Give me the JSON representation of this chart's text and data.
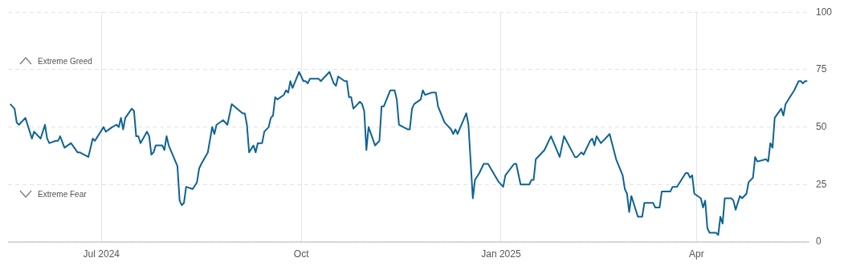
{
  "chart_data": {
    "type": "line",
    "x": [
      "2024-05-20",
      "2024-05-22",
      "2024-05-23",
      "2024-05-24",
      "2024-05-27",
      "2024-05-30",
      "2024-05-31",
      "2024-06-03",
      "2024-06-05",
      "2024-06-06",
      "2024-06-07",
      "2024-06-10",
      "2024-06-11",
      "2024-06-12",
      "2024-06-14",
      "2024-06-17",
      "2024-06-20",
      "2024-06-21",
      "2024-06-25",
      "2024-06-27",
      "2024-06-28",
      "2024-07-02",
      "2024-07-03",
      "2024-07-06",
      "2024-07-08",
      "2024-07-09",
      "2024-07-10",
      "2024-07-11",
      "2024-07-12",
      "2024-07-15",
      "2024-07-16",
      "2024-07-17",
      "2024-07-18",
      "2024-07-19",
      "2024-07-22",
      "2024-07-23",
      "2024-07-24",
      "2024-07-25",
      "2024-07-26",
      "2024-07-29",
      "2024-07-30",
      "2024-07-31",
      "2024-08-01",
      "2024-08-05",
      "2024-08-06",
      "2024-08-07",
      "2024-08-08",
      "2024-08-09",
      "2024-08-12",
      "2024-08-14",
      "2024-08-15",
      "2024-08-16",
      "2024-08-19",
      "2024-08-21",
      "2024-08-22",
      "2024-08-23",
      "2024-08-26",
      "2024-08-28",
      "2024-08-30",
      "2024-09-04",
      "2024-09-05",
      "2024-09-06",
      "2024-09-07",
      "2024-09-09",
      "2024-09-10",
      "2024-09-11",
      "2024-09-13",
      "2024-09-14",
      "2024-09-16",
      "2024-09-17",
      "2024-09-18",
      "2024-09-19",
      "2024-09-20",
      "2024-09-23",
      "2024-09-24",
      "2024-09-25",
      "2024-09-26",
      "2024-09-27",
      "2024-09-30",
      "2024-10-02",
      "2024-10-03",
      "2024-10-04",
      "2024-10-05",
      "2024-10-07",
      "2024-10-09",
      "2024-10-10",
      "2024-10-12",
      "2024-10-14",
      "2024-10-16",
      "2024-10-17",
      "2024-10-18",
      "2024-10-21",
      "2024-10-22",
      "2024-10-23",
      "2024-10-24",
      "2024-10-25",
      "2024-10-28",
      "2024-10-29",
      "2024-10-30",
      "2024-10-31",
      "2024-11-01",
      "2024-11-04",
      "2024-11-06",
      "2024-11-07",
      "2024-11-08",
      "2024-11-11",
      "2024-11-13",
      "2024-11-14",
      "2024-11-15",
      "2024-11-17",
      "2024-11-19",
      "2024-11-20",
      "2024-11-21",
      "2024-11-22",
      "2024-11-25",
      "2024-11-26",
      "2024-11-27",
      "2024-11-30",
      "2024-12-02",
      "2024-12-03",
      "2024-12-06",
      "2024-12-09",
      "2024-12-10",
      "2024-12-11",
      "2024-12-12",
      "2024-12-16",
      "2024-12-17",
      "2024-12-19",
      "2024-12-20",
      "2024-12-22",
      "2024-12-24",
      "2024-12-26",
      "2024-12-31",
      "2025-01-02",
      "2025-01-03",
      "2025-01-07",
      "2025-01-08",
      "2025-01-10",
      "2025-01-14",
      "2025-01-15",
      "2025-01-16",
      "2025-01-17",
      "2025-01-21",
      "2025-01-24",
      "2025-01-28",
      "2025-01-30",
      "2025-02-04",
      "2025-02-05",
      "2025-02-07",
      "2025-02-08",
      "2025-02-11",
      "2025-02-12",
      "2025-02-13",
      "2025-02-14",
      "2025-02-16",
      "2025-02-20",
      "2025-02-23",
      "2025-02-26",
      "2025-02-27",
      "2025-02-28",
      "2025-03-01",
      "2025-03-02",
      "2025-03-05",
      "2025-03-06",
      "2025-03-07",
      "2025-03-08",
      "2025-03-09",
      "2025-03-12",
      "2025-03-13",
      "2025-03-14",
      "2025-03-15",
      "2025-03-16",
      "2025-03-20",
      "2025-03-21",
      "2025-03-23",
      "2025-03-27",
      "2025-03-28",
      "2025-03-29",
      "2025-03-30",
      "2025-03-31",
      "2025-04-03",
      "2025-04-04",
      "2025-04-05",
      "2025-04-06",
      "2025-04-07",
      "2025-04-10",
      "2025-04-11",
      "2025-04-12",
      "2025-04-13",
      "2025-04-14",
      "2025-04-17",
      "2025-04-18",
      "2025-04-19",
      "2025-04-21",
      "2025-04-22",
      "2025-04-24",
      "2025-04-25",
      "2025-04-27",
      "2025-04-28",
      "2025-04-29",
      "2025-05-03",
      "2025-05-04",
      "2025-05-05",
      "2025-05-06",
      "2025-05-07",
      "2025-05-10",
      "2025-05-11",
      "2025-05-12",
      "2025-05-14",
      "2025-05-16",
      "2025-05-18",
      "2025-05-19",
      "2025-05-20",
      "2025-05-21",
      "2025-05-22"
    ],
    "series": [
      {
        "color": "#0f6394",
        "values": [
          60,
          58,
          52,
          51,
          54,
          45,
          48,
          45,
          51,
          45,
          43,
          44,
          44,
          46,
          41,
          43,
          39,
          39,
          37,
          45,
          44,
          50,
          48,
          50,
          51,
          50,
          54,
          49,
          54,
          58,
          57,
          46,
          46,
          43,
          48,
          46,
          38,
          39,
          42,
          42,
          40,
          46,
          42,
          33,
          18,
          16,
          17,
          24,
          23,
          26,
          32,
          34,
          39,
          50,
          47,
          51,
          53,
          51,
          60,
          56,
          56,
          51,
          39,
          42,
          39,
          43,
          43,
          48,
          50,
          54,
          55,
          63,
          62,
          64,
          66,
          65,
          70,
          67,
          74,
          70,
          70,
          69,
          71,
          71,
          71,
          70,
          72,
          74,
          69,
          68,
          72,
          70,
          70,
          63,
          63,
          58,
          61,
          60,
          57,
          40,
          50,
          42,
          44,
          59,
          59,
          66,
          66,
          62,
          51,
          50,
          49,
          49,
          58,
          60,
          62,
          66,
          64,
          65,
          65,
          59,
          52,
          49,
          47,
          49,
          47,
          56,
          51,
          19,
          27,
          30,
          34,
          34,
          26,
          24,
          29,
          34,
          34,
          25,
          25,
          27,
          27,
          36,
          40,
          46,
          37,
          46,
          37,
          37,
          39,
          38,
          44,
          45,
          42,
          46,
          43,
          47,
          36,
          29,
          23,
          21,
          13,
          20,
          11,
          11,
          11,
          17,
          17,
          17,
          15,
          15,
          15,
          22,
          22,
          24,
          24,
          30,
          30,
          28,
          29,
          21,
          19,
          15,
          18,
          6,
          4,
          4,
          3,
          11,
          8,
          19,
          19,
          18,
          14,
          20,
          19,
          21,
          26,
          28,
          37,
          35,
          36,
          35,
          43,
          41,
          54,
          58,
          55,
          60,
          63,
          66,
          70,
          70,
          69,
          70,
          70
        ]
      }
    ],
    "xlim": [
      "2024-05-19",
      "2025-05-23"
    ],
    "xticks": [
      {
        "value": "2024-07-01",
        "label": "Jul 2024"
      },
      {
        "value": "2024-10-01",
        "label": "Oct"
      },
      {
        "value": "2025-01-01",
        "label": "Jan 2025"
      },
      {
        "value": "2025-04-01",
        "label": "Apr"
      }
    ],
    "ylim": [
      0,
      100
    ],
    "yticks": [
      0,
      25,
      50,
      75,
      100
    ],
    "grid": true,
    "annotations": [
      "Extreme Greed",
      "Extreme Fear"
    ]
  }
}
